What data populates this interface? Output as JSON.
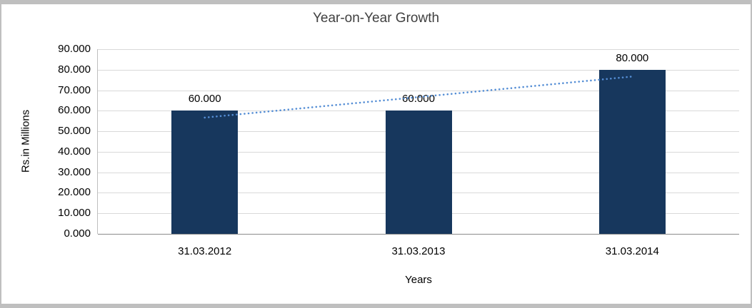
{
  "chart_data": {
    "type": "bar",
    "title": "Year-on-Year Growth",
    "xlabel": "Years",
    "ylabel": "Rs.in Millions",
    "categories": [
      "31.03.2012",
      "31.03.2013",
      "31.03.2014"
    ],
    "values": [
      60,
      60,
      80
    ],
    "data_labels": [
      "60.000",
      "60.000",
      "80.000"
    ],
    "ylim": [
      0,
      90
    ],
    "ytick_step": 10,
    "ytick_labels": [
      "0.000",
      "10.000",
      "20.000",
      "30.000",
      "40.000",
      "50.000",
      "60.000",
      "70.000",
      "80.000",
      "90.000"
    ],
    "grid": true,
    "legend": "none",
    "bar_color": "#17375D",
    "trendline": {
      "type": "linear",
      "style": "dotted",
      "color": "#558ED5"
    }
  }
}
